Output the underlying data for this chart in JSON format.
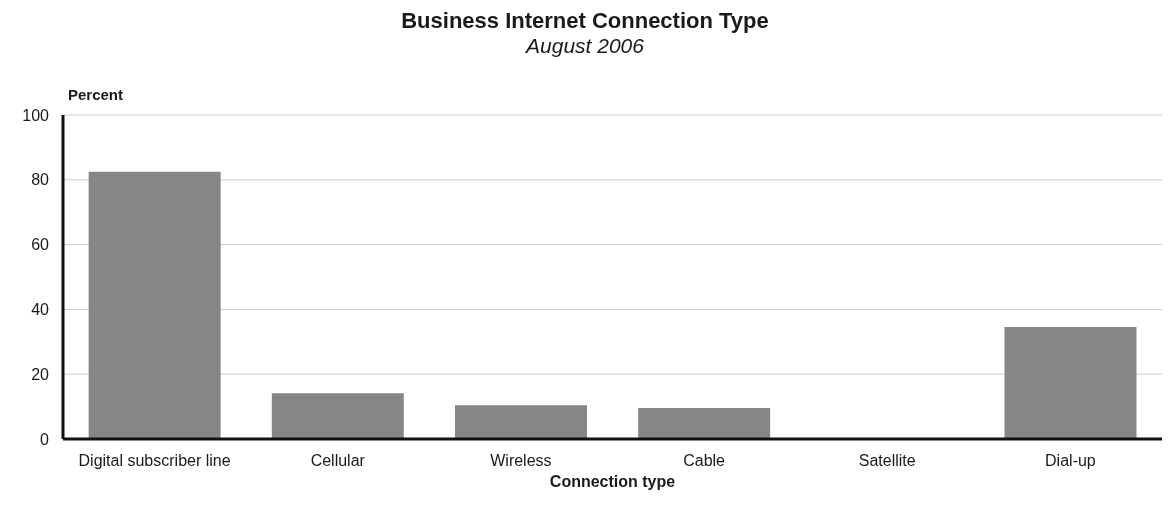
{
  "chart_data": {
    "type": "bar",
    "title": "Business Internet Connection Type",
    "subtitle": "August 2006",
    "xlabel": "Connection type",
    "ylabel": "Percent",
    "categories": [
      "Digital subscriber line",
      "Cellular",
      "Wireless",
      "Cable",
      "Satellite",
      "Dial-up"
    ],
    "values": [
      82.5,
      14.1,
      10.4,
      9.6,
      0.3,
      34.6
    ],
    "color": "#868686",
    "ylim": [
      0,
      100
    ],
    "yticks": [
      0,
      20,
      40,
      60,
      80,
      100
    ],
    "grid": "y"
  }
}
